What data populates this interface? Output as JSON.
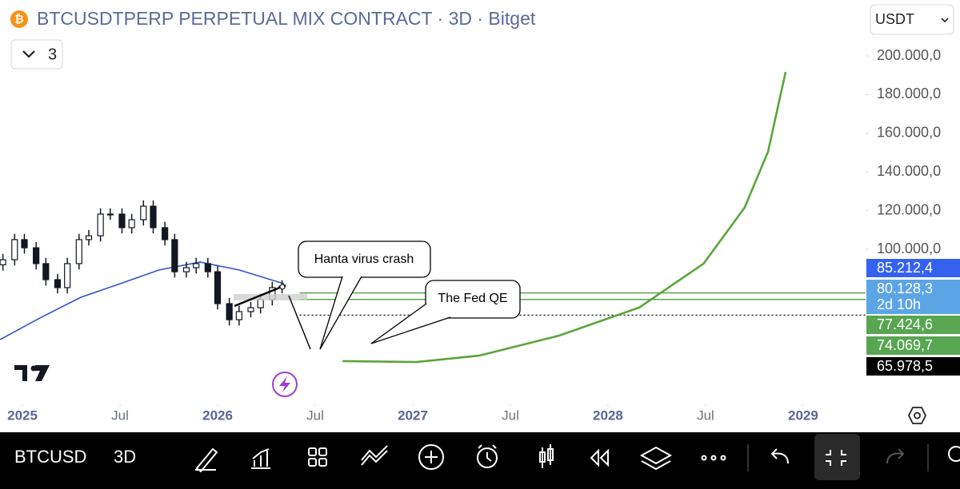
{
  "header": {
    "title": "BTCUSDTPERP PERPETUAL MIX CONTRACT · 3D · Bitget",
    "indicators": "3",
    "currency": "USDT"
  },
  "chart_data": {
    "type": "candlestick",
    "x": [
      2024.9,
      2024.96,
      2025.01,
      2025.07,
      2025.12,
      2025.18,
      2025.23,
      2025.29,
      2025.34,
      2025.4,
      2025.45,
      2025.51,
      2025.56,
      2025.62,
      2025.67,
      2025.73,
      2025.78,
      2025.84,
      2025.89,
      2025.95,
      2026.0,
      2026.06,
      2026.11,
      2026.17,
      2026.22,
      2026.28,
      2026.33
    ],
    "open": [
      92000,
      94600,
      105000,
      100800,
      92600,
      84300,
      80200,
      92600,
      105000,
      107000,
      118200,
      118200,
      111200,
      115300,
      122300,
      111200,
      105000,
      88400,
      90500,
      92600,
      88400,
      71900,
      63600,
      67800,
      69800,
      74000,
      80200
    ],
    "high": [
      97600,
      108000,
      108000,
      103800,
      95600,
      87300,
      95600,
      108000,
      110000,
      121200,
      121200,
      121200,
      118300,
      125300,
      125300,
      114200,
      108000,
      93500,
      95600,
      95600,
      91400,
      74900,
      70800,
      72800,
      77000,
      83200,
      84000
    ],
    "low": [
      89000,
      91600,
      97800,
      89600,
      81300,
      77200,
      77200,
      89600,
      102000,
      104000,
      115200,
      108200,
      108200,
      112300,
      108200,
      102000,
      85400,
      85400,
      87500,
      85400,
      68900,
      60600,
      60600,
      64800,
      66800,
      71000,
      77200
    ],
    "close": [
      94600,
      105000,
      100800,
      92600,
      84300,
      80200,
      92600,
      105000,
      107000,
      118200,
      118200,
      111200,
      115300,
      122300,
      111200,
      105000,
      88400,
      90500,
      92600,
      88400,
      71900,
      63600,
      67800,
      69800,
      74000,
      80200,
      81000
    ],
    "color": "#131722",
    "moving_average": {
      "x": [
        2024.885,
        2025.09,
        2025.3,
        2025.5,
        2025.7,
        2025.91,
        2026.11,
        2026.34
      ],
      "values": [
        53300,
        64500,
        75200,
        82200,
        89300,
        93400,
        89300,
        82200
      ],
      "color": "#2f54c8"
    },
    "projection": {
      "x": [
        2026.64,
        2027.02,
        2027.34,
        2027.75,
        2028.16,
        2028.49,
        2028.7,
        2028.82,
        2028.91
      ],
      "values": [
        42200,
        41700,
        45000,
        55400,
        69900,
        92600,
        121500,
        150400,
        191700
      ],
      "color": "#5aa53a"
    },
    "price_labels": [
      {
        "value": 85212.4,
        "label": "85.212,4",
        "color": "#3461f0"
      },
      {
        "value": 80128.3,
        "label": "80.128,3",
        "countdown": "2d 10h",
        "color": "#5ba4e5"
      },
      {
        "value": 77424.6,
        "label": "77.424,6",
        "color": "#58a552",
        "line": "solid"
      },
      {
        "value": 74069.7,
        "label": "74.069,7",
        "color": "#58a552",
        "line": "solid"
      },
      {
        "value": 65978.5,
        "label": "65.978,5",
        "color": "#000000",
        "line": "dotted"
      }
    ],
    "annotations": [
      "Hanta virus crash",
      "The Fed QE"
    ],
    "xlim": [
      2024.885,
      2029.32
    ],
    "xticks": [
      2025,
      {
        "value": 2025.5,
        "label": "Jul"
      },
      2026,
      {
        "value": 2026.5,
        "label": "Jul"
      },
      2027,
      {
        "value": 2027.5,
        "label": "Jul"
      },
      2028,
      {
        "value": 2028.5,
        "label": "Jul"
      },
      2029
    ],
    "ylim": [
      22324,
      228926
    ],
    "yticks": [
      {
        "value": 100000,
        "label": "100.000,0"
      },
      {
        "value": 120000,
        "label": "120.000,0"
      },
      {
        "value": 140000,
        "label": "140.000,0"
      },
      {
        "value": 160000,
        "label": "160.000,0"
      },
      {
        "value": 180000,
        "label": "180.000,0"
      },
      {
        "value": 200000,
        "label": "200.000,0"
      }
    ]
  },
  "toolbar": {
    "symbol": "BTCUSD",
    "interval": "3D"
  }
}
